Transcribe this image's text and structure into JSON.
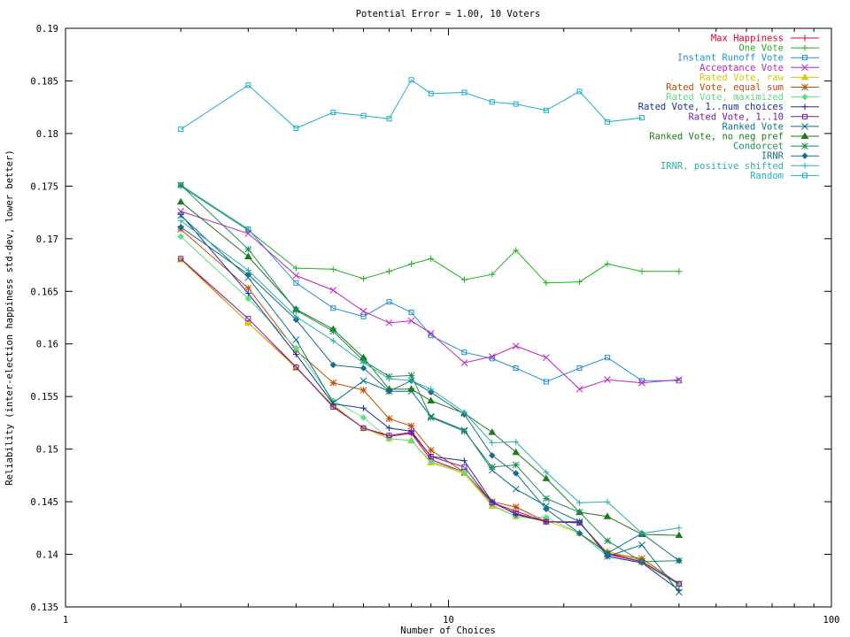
{
  "chart_data": {
    "type": "line",
    "title": "Potential Error = 1.00, 10 Voters",
    "xlabel": "Number of Choices",
    "ylabel": "Reliability (inter-election happiness std-dev, lower better)",
    "x_scale": "log",
    "xlim": [
      1,
      100
    ],
    "ylim": [
      0.135,
      0.19
    ],
    "grid": false,
    "legend_position": "top-right",
    "x_ticks": [
      1,
      10,
      100
    ],
    "x_tick_labels": [
      "1",
      "10",
      "100"
    ],
    "y_ticks": [
      0.135,
      0.14,
      0.145,
      0.15,
      0.155,
      0.16,
      0.165,
      0.17,
      0.175,
      0.18,
      0.185,
      0.19
    ],
    "y_tick_labels": [
      "0.135",
      "0.14",
      "0.145",
      "0.15",
      "0.155",
      "0.16",
      "0.165",
      "0.17",
      "0.175",
      "0.18",
      "0.185",
      "0.19"
    ],
    "x": [
      2,
      3,
      4,
      5,
      6,
      7,
      8,
      9,
      11,
      13,
      15,
      18,
      22,
      26,
      32,
      40
    ],
    "series": [
      {
        "name": "Max Happiness",
        "color": "#e0002a",
        "marker": "plus",
        "values": [
          0.1681,
          0.162,
          0.1578,
          0.1541,
          0.152,
          0.1512,
          0.1515,
          0.149,
          0.1478,
          0.1449,
          0.1441,
          0.1431,
          0.143,
          0.1401,
          0.1393,
          0.1371
        ]
      },
      {
        "name": "One Vote",
        "color": "#21b021",
        "marker": "plus",
        "values": [
          0.175,
          0.1708,
          0.1672,
          0.1671,
          0.1662,
          0.1669,
          0.1676,
          0.1681,
          0.1661,
          0.1666,
          0.1689,
          0.1658,
          0.1659,
          0.1676,
          0.1669,
          0.1669
        ]
      },
      {
        "name": "Instant Runoff Vote",
        "color": "#1f8fd6",
        "marker": "square",
        "values": [
          0.1751,
          0.1709,
          0.1658,
          0.1634,
          0.1626,
          0.164,
          0.163,
          0.1608,
          0.1592,
          0.1586,
          0.1577,
          0.1564,
          0.1577,
          0.1587,
          0.1565,
          0.1565
        ]
      },
      {
        "name": "Acceptance Vote",
        "color": "#c024c8",
        "marker": "cross",
        "values": [
          0.1726,
          0.1705,
          0.1665,
          0.1651,
          0.1631,
          0.162,
          0.1622,
          0.161,
          0.1582,
          0.1588,
          0.1598,
          0.1587,
          0.1557,
          0.1566,
          0.1563,
          0.1566
        ]
      },
      {
        "name": "Rated Vote, raw",
        "color": "#d8c800",
        "marker": "triangle",
        "values": [
          0.168,
          0.162,
          0.1577,
          0.1542,
          0.152,
          0.151,
          0.1508,
          0.1487,
          0.1477,
          0.1446,
          0.1436,
          0.1432,
          0.142,
          0.1403,
          0.1394,
          0.1372
        ]
      },
      {
        "name": "Rated Vote, equal sum",
        "color": "#c24a00",
        "marker": "star",
        "values": [
          0.1709,
          0.1653,
          0.1594,
          0.1563,
          0.1556,
          0.1529,
          0.1522,
          0.1499,
          0.1478,
          0.145,
          0.1445,
          0.1431,
          0.143,
          0.1401,
          0.1396,
          0.1372
        ]
      },
      {
        "name": "Rated Vote, maximized",
        "color": "#5ede82",
        "marker": "diamond",
        "values": [
          0.1702,
          0.1643,
          0.1596,
          0.1546,
          0.153,
          0.151,
          0.1508,
          0.1488,
          0.1478,
          0.1447,
          0.1436,
          0.1435,
          0.142,
          0.1398,
          0.1392,
          0.1371
        ]
      },
      {
        "name": "Rated Vote, 1..num choices",
        "color": "#1a2e9c",
        "marker": "plus",
        "values": [
          0.1723,
          0.1648,
          0.159,
          0.1543,
          0.1539,
          0.152,
          0.1517,
          0.1493,
          0.1489,
          0.145,
          0.1438,
          0.1431,
          0.1431,
          0.1398,
          0.1392,
          0.1366
        ]
      },
      {
        "name": "Rated Vote, 1..10",
        "color": "#7a1aa8",
        "marker": "square",
        "values": [
          0.1681,
          0.1624,
          0.1578,
          0.154,
          0.152,
          0.1513,
          0.1516,
          0.1493,
          0.1483,
          0.1449,
          0.1439,
          0.1431,
          0.143,
          0.14,
          0.1393,
          0.1372
        ]
      },
      {
        "name": "Ranked Vote",
        "color": "#0c6f8a",
        "marker": "cross",
        "values": [
          0.1722,
          0.1663,
          0.1604,
          0.1544,
          0.1565,
          0.1555,
          0.1555,
          0.1531,
          0.1518,
          0.148,
          0.1462,
          0.1446,
          0.1431,
          0.1398,
          0.1409,
          0.1364
        ]
      },
      {
        "name": "Ranked Vote, no neg pref",
        "color": "#1f7a1a",
        "marker": "triangle",
        "values": [
          0.1735,
          0.1683,
          0.1633,
          0.1614,
          0.1587,
          0.1557,
          0.1557,
          0.1546,
          0.1534,
          0.1516,
          0.1497,
          0.1472,
          0.144,
          0.1436,
          0.1419,
          0.1418
        ]
      },
      {
        "name": "Condorcet",
        "color": "#1d8c5a",
        "marker": "star",
        "values": [
          0.1751,
          0.169,
          0.1632,
          0.1612,
          0.1584,
          0.1569,
          0.157,
          0.153,
          0.1517,
          0.1483,
          0.1485,
          0.1453,
          0.144,
          0.1413,
          0.1393,
          0.1394
        ]
      },
      {
        "name": "IRNR",
        "color": "#186e8e",
        "marker": "diamond",
        "values": [
          0.1711,
          0.1666,
          0.1623,
          0.158,
          0.1577,
          0.1555,
          0.1565,
          0.1554,
          0.1533,
          0.1494,
          0.1477,
          0.1443,
          0.142,
          0.1401,
          0.142,
          0.1394
        ]
      },
      {
        "name": "IRNR, positive shifted",
        "color": "#2bb0a8",
        "marker": "plus",
        "values": [
          0.1717,
          0.167,
          0.1626,
          0.1603,
          0.1582,
          0.1567,
          0.1565,
          0.1557,
          0.1535,
          0.1506,
          0.1507,
          0.1478,
          0.1449,
          0.145,
          0.142,
          0.1425
        ]
      },
      {
        "name": "Random",
        "color": "#1cb0c8",
        "marker": "square",
        "values": [
          0.1804,
          0.1846,
          0.1805,
          0.182,
          0.1817,
          0.1814,
          0.1851,
          0.1838,
          0.1839,
          0.183,
          0.1828,
          0.1822,
          0.184,
          0.1811,
          0.1815,
          null
        ]
      }
    ]
  }
}
